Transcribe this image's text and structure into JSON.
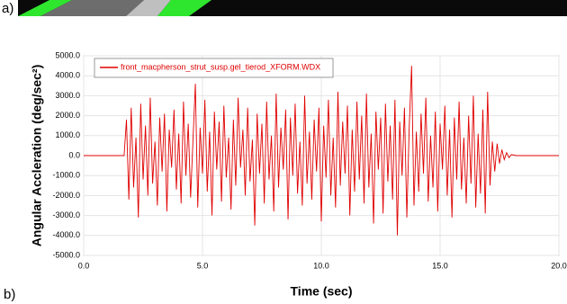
{
  "panel_labels": {
    "a": "a)",
    "b": "b)"
  },
  "chart_data": {
    "type": "line",
    "xlabel": "Time (sec)",
    "ylabel": "Angular Accleration (deg/sec²)",
    "legend": "upper left",
    "grid": true,
    "xlim": [
      0,
      20
    ],
    "ylim": [
      -5000,
      5000
    ],
    "xticks": [
      {
        "value": 0,
        "label": "0.0"
      },
      {
        "value": 5,
        "label": "5.0"
      },
      {
        "value": 10,
        "label": "10.0"
      },
      {
        "value": 15,
        "label": "15.0"
      },
      {
        "value": 20,
        "label": "20.0"
      }
    ],
    "yticks": [
      {
        "value": 5000,
        "label": "5000.0"
      },
      {
        "value": 4000,
        "label": "4000.0"
      },
      {
        "value": 3000,
        "label": "3000.0"
      },
      {
        "value": 2000,
        "label": "2000.0"
      },
      {
        "value": 1000,
        "label": "1000.0"
      },
      {
        "value": 0,
        "label": "0.0"
      },
      {
        "value": -1000,
        "label": "-1000.0"
      },
      {
        "value": -2000,
        "label": "-2000.0"
      },
      {
        "value": -3000,
        "label": "-3000.0"
      },
      {
        "value": -4000,
        "label": "-4000.0"
      },
      {
        "value": -5000,
        "label": "-5000.0"
      }
    ],
    "x": [
      0,
      1.7,
      1.8,
      1.9,
      2.0,
      2.1,
      2.2,
      2.3,
      2.4,
      2.5,
      2.6,
      2.7,
      2.8,
      2.9,
      3.0,
      3.1,
      3.2,
      3.3,
      3.4,
      3.5,
      3.6,
      3.7,
      3.8,
      3.9,
      4.0,
      4.1,
      4.2,
      4.3,
      4.4,
      4.5,
      4.6,
      4.7,
      4.8,
      4.9,
      5.0,
      5.1,
      5.2,
      5.3,
      5.4,
      5.5,
      5.6,
      5.7,
      5.8,
      5.9,
      6.0,
      6.1,
      6.2,
      6.3,
      6.4,
      6.5,
      6.6,
      6.7,
      6.8,
      6.9,
      7.0,
      7.1,
      7.2,
      7.3,
      7.4,
      7.5,
      7.6,
      7.7,
      7.8,
      7.9,
      8.0,
      8.1,
      8.2,
      8.3,
      8.4,
      8.5,
      8.6,
      8.7,
      8.8,
      8.9,
      9.0,
      9.1,
      9.2,
      9.3,
      9.4,
      9.5,
      9.6,
      9.7,
      9.8,
      9.9,
      10.0,
      10.1,
      10.2,
      10.3,
      10.4,
      10.5,
      10.6,
      10.7,
      10.8,
      10.9,
      11.0,
      11.1,
      11.2,
      11.3,
      11.4,
      11.5,
      11.6,
      11.7,
      11.8,
      11.9,
      12.0,
      12.1,
      12.2,
      12.3,
      12.4,
      12.5,
      12.6,
      12.7,
      12.8,
      12.9,
      13.0,
      13.1,
      13.2,
      13.3,
      13.4,
      13.5,
      13.6,
      13.7,
      13.8,
      13.9,
      14.0,
      14.1,
      14.2,
      14.3,
      14.4,
      14.5,
      14.6,
      14.7,
      14.8,
      14.9,
      15.0,
      15.1,
      15.2,
      15.3,
      15.4,
      15.5,
      15.6,
      15.7,
      15.8,
      15.9,
      16.0,
      16.1,
      16.2,
      16.3,
      16.4,
      16.5,
      16.6,
      16.7,
      16.8,
      16.9,
      17.0,
      17.1,
      17.2,
      17.3,
      17.4,
      17.5,
      17.6,
      17.7,
      17.8,
      17.9,
      18.0,
      18.2,
      20
    ],
    "series": [
      {
        "name": "front_macpherson_strut_susp.gel_tierod_XFORM.WDX",
        "color": "#e00000",
        "values": [
          0,
          0,
          1800,
          -2200,
          2400,
          -1600,
          900,
          -3100,
          2600,
          -1200,
          1500,
          -2000,
          2900,
          -1400,
          700,
          -2500,
          1900,
          -800,
          2100,
          -2800,
          1300,
          -600,
          2300,
          -1700,
          1100,
          -2400,
          2700,
          -1000,
          1600,
          -2100,
          800,
          3600,
          -2600,
          1400,
          -900,
          2800,
          -1800,
          1200,
          -3000,
          2200,
          -700,
          1700,
          -2300,
          2500,
          -1100,
          900,
          -2700,
          1800,
          -1500,
          2900,
          -600,
          1300,
          -2000,
          2400,
          -1300,
          800,
          -3500,
          2100,
          -900,
          1600,
          -2400,
          2700,
          -1200,
          1000,
          -2800,
          3100,
          -1600,
          1400,
          -700,
          2300,
          -3200,
          1900,
          -1000,
          2600,
          -1900,
          700,
          -2500,
          3000,
          -1400,
          1200,
          -2200,
          1800,
          -800,
          2400,
          -3300,
          1500,
          -1100,
          2800,
          -2000,
          900,
          -2600,
          3200,
          -1500,
          1700,
          -900,
          2500,
          -3000,
          1300,
          -1800,
          2700,
          -1200,
          2000,
          -2400,
          3100,
          -1600,
          1100,
          -3400,
          2200,
          -700,
          1900,
          -2900,
          2600,
          -1300,
          1500,
          -2200,
          2800,
          -4000,
          1700,
          -1000,
          2400,
          -3100,
          1400,
          4500,
          -2500,
          1200,
          -1800,
          2100,
          -900,
          2900,
          -2300,
          1000,
          -1600,
          2200,
          -2800,
          1600,
          -700,
          2500,
          -2000,
          1300,
          -3100,
          1900,
          -1200,
          2700,
          -1700,
          900,
          -2400,
          2000,
          -1400,
          3000,
          -2600,
          1100,
          -1900,
          2300,
          -2900,
          3200,
          -1500,
          700,
          -800,
          600,
          -400,
          300,
          -200,
          150,
          -100,
          50,
          0,
          0
        ]
      }
    ]
  }
}
